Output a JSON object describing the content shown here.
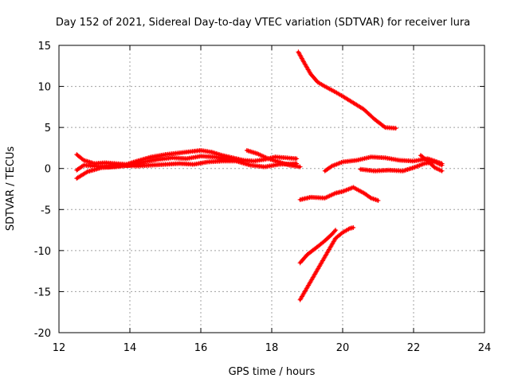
{
  "chart_data": {
    "type": "scatter",
    "title": "Day 152 of 2021, Sidereal Day-to-day VTEC variation (SDTVAR) for receiver lura",
    "xlabel": "GPS time / hours",
    "ylabel": "SDTVAR / TECUs",
    "xlim": [
      12,
      24
    ],
    "ylim": [
      -20,
      15
    ],
    "xticks": [
      12,
      14,
      16,
      18,
      20,
      22,
      24
    ],
    "yticks": [
      -20,
      -15,
      -10,
      -5,
      0,
      5,
      10,
      15
    ],
    "grid": true,
    "marker": "plus",
    "color": "#ff0000",
    "series": [
      {
        "x": [
          12.5,
          12.7,
          13.0,
          13.3,
          13.6,
          13.9,
          14.2,
          14.6,
          15.0,
          15.4,
          15.8,
          16.0,
          16.3,
          16.6,
          16.9,
          17.2,
          17.5,
          17.8,
          18.1,
          18.4,
          18.7
        ],
        "y": [
          1.7,
          1.0,
          0.6,
          0.7,
          0.6,
          0.5,
          0.9,
          1.4,
          1.7,
          1.9,
          2.1,
          2.2,
          2.0,
          1.6,
          1.3,
          1.0,
          0.9,
          1.1,
          1.4,
          1.3,
          1.2
        ]
      },
      {
        "x": [
          12.5,
          12.7,
          13.0,
          13.4,
          13.8,
          14.2,
          14.6,
          15.0,
          15.4,
          15.8,
          16.2,
          16.6,
          17.0,
          17.4,
          17.8,
          18.2,
          18.7
        ],
        "y": [
          -0.2,
          0.4,
          0.3,
          0.2,
          0.4,
          0.3,
          0.4,
          0.5,
          0.6,
          0.5,
          0.8,
          0.9,
          0.9,
          0.4,
          0.2,
          0.5,
          0.6
        ]
      },
      {
        "x": [
          12.5,
          12.8,
          13.2,
          13.6,
          14.0,
          14.4,
          14.8,
          15.2,
          15.6,
          16.0,
          16.4,
          16.8,
          17.2
        ],
        "y": [
          -1.2,
          -0.4,
          0.1,
          0.2,
          0.4,
          0.8,
          1.1,
          1.3,
          1.2,
          1.5,
          1.4,
          1.1,
          0.9
        ]
      },
      {
        "x": [
          17.3,
          17.6,
          17.9,
          18.2,
          18.5,
          18.8
        ],
        "y": [
          2.2,
          1.8,
          1.2,
          0.8,
          0.4,
          0.2
        ]
      },
      {
        "x": [
          18.75,
          18.9,
          19.1,
          19.3,
          19.5,
          19.8,
          20.0,
          20.3,
          20.6,
          20.9,
          21.2,
          21.5
        ],
        "y": [
          14.2,
          13.0,
          11.5,
          10.5,
          10.0,
          9.3,
          8.8,
          8.0,
          7.2,
          6.0,
          5.0,
          4.9
        ]
      },
      {
        "x": [
          19.5,
          19.7,
          20.0,
          20.4,
          20.8,
          21.2,
          21.6,
          22.0,
          22.4,
          22.8
        ],
        "y": [
          -0.3,
          0.3,
          0.8,
          1.0,
          1.4,
          1.3,
          1.0,
          0.9,
          1.2,
          0.6
        ]
      },
      {
        "x": [
          20.5,
          20.9,
          21.3,
          21.7,
          22.0,
          22.3,
          22.6,
          22.8
        ],
        "y": [
          -0.1,
          -0.3,
          -0.2,
          -0.3,
          0.1,
          0.6,
          0.8,
          0.4
        ]
      },
      {
        "x": [
          22.2,
          22.4,
          22.6,
          22.8
        ],
        "y": [
          1.6,
          0.9,
          0.1,
          -0.3
        ]
      },
      {
        "x": [
          18.8,
          19.1,
          19.5,
          19.8,
          20.0,
          20.3,
          20.6,
          20.8,
          21.0
        ],
        "y": [
          -3.8,
          -3.5,
          -3.6,
          -3.0,
          -2.8,
          -2.3,
          -3.0,
          -3.6,
          -3.9
        ]
      },
      {
        "x": [
          18.8,
          19.0,
          19.3,
          19.5,
          19.7,
          19.8
        ],
        "y": [
          -11.5,
          -10.5,
          -9.5,
          -8.8,
          -8.0,
          -7.5
        ]
      },
      {
        "x": [
          18.8,
          19.0,
          19.2,
          19.4,
          19.6,
          19.8,
          20.0,
          20.2,
          20.3
        ],
        "y": [
          -16.0,
          -14.5,
          -13.0,
          -11.5,
          -10.0,
          -8.5,
          -7.8,
          -7.3,
          -7.2
        ]
      }
    ]
  }
}
